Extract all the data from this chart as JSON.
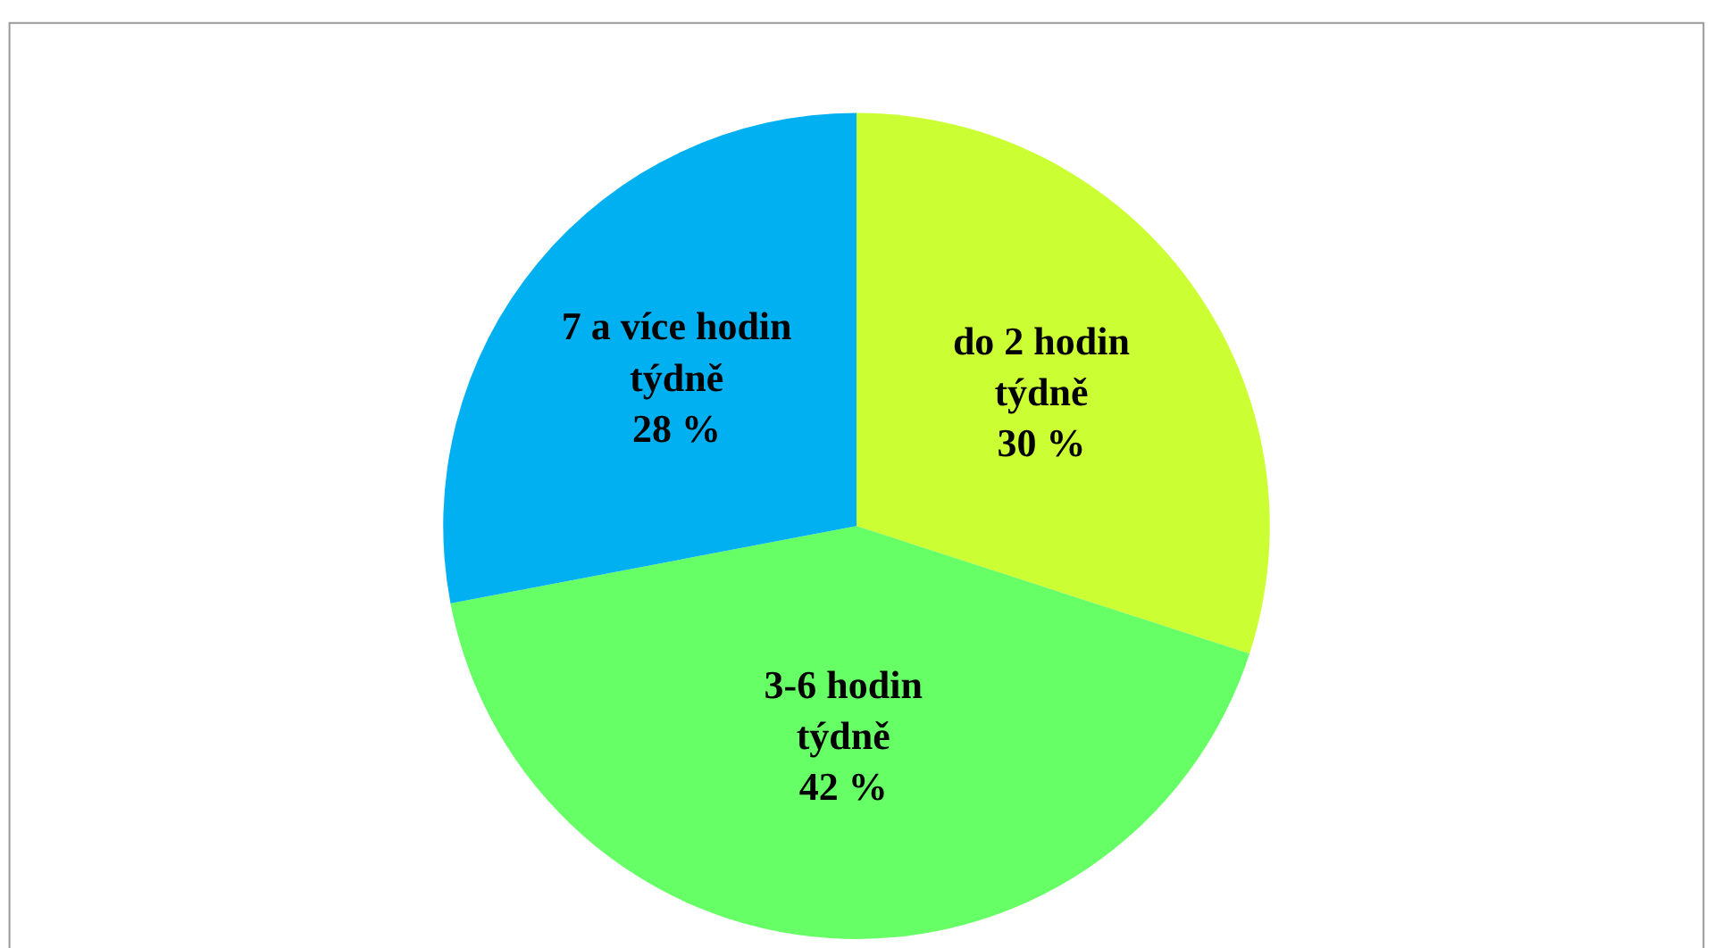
{
  "chart_data": {
    "type": "pie",
    "categories": [
      "do 2 hodin týdně",
      "3-6 hodin týdně",
      "7 a více hodin týdně"
    ],
    "values": [
      30,
      42,
      28
    ],
    "colors": [
      "#ccff33",
      "#66ff66",
      "#00b0f0"
    ],
    "value_labels": [
      "30 %",
      "42 %",
      "28 %"
    ],
    "legend": false
  }
}
